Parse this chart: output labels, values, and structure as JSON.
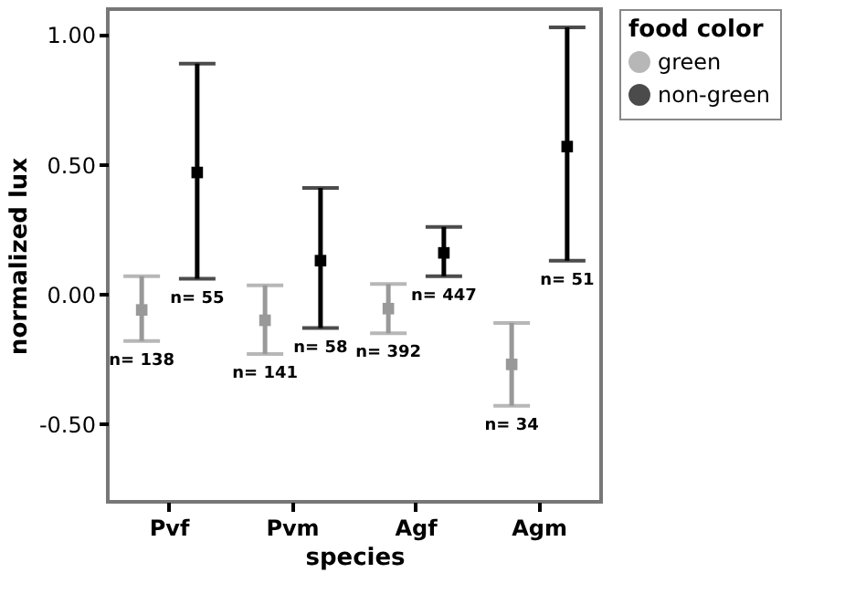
{
  "chart_data": {
    "type": "scatter",
    "xlabel": "species",
    "ylabel": "normalized lux",
    "legend_title": "food color",
    "categories": [
      "Pvf",
      "Pvm",
      "Agf",
      "Agm"
    ],
    "series": [
      {
        "name": "green",
        "color": "#999999",
        "values": [
          -0.06,
          -0.1,
          -0.055,
          -0.27
        ],
        "errors": [
          [
            -0.18,
            0.07
          ],
          [
            -0.23,
            0.035
          ],
          [
            -0.15,
            0.04
          ],
          [
            -0.43,
            -0.11
          ]
        ]
      },
      {
        "name": "non-green",
        "color": "#000000",
        "values": [
          0.47,
          0.13,
          0.16,
          0.57
        ],
        "errors": [
          [
            0.06,
            0.89
          ],
          [
            -0.13,
            0.41
          ],
          [
            0.07,
            0.26
          ],
          [
            0.13,
            1.03
          ]
        ]
      }
    ],
    "annotations": [
      "n= 138",
      "n= 55",
      "n= 141",
      "n= 58",
      "n= 392",
      "n= 447",
      "n= 34",
      "n= 51"
    ],
    "ylim": [
      -0.8,
      1.1
    ],
    "yticks": [
      {
        "value": -0.5,
        "label": "-0.50"
      },
      {
        "value": 0,
        "label": "0.00"
      },
      {
        "value": 0.5,
        "label": "0.50"
      },
      {
        "value": 1,
        "label": "1.00"
      }
    ],
    "grid": false,
    "legend": "right",
    "marker": "square"
  }
}
